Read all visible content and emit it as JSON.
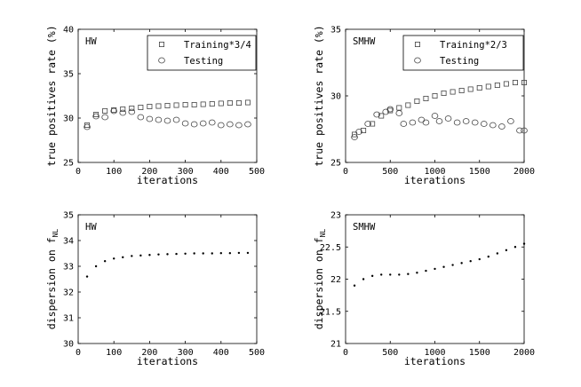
{
  "chart_data": [
    {
      "type": "scatter",
      "panel_label": "HW",
      "xlabel": "iterations",
      "ylabel": "true positives rate (%)",
      "xlim": [
        0,
        500
      ],
      "ylim": [
        25,
        40
      ],
      "xticks": [
        0,
        100,
        200,
        300,
        400,
        500
      ],
      "yticks": [
        25,
        30,
        35,
        40
      ],
      "legend": [
        "Training*3/4",
        "Testing"
      ],
      "series": [
        {
          "name": "Training*3/4",
          "marker": "square",
          "x": [
            25,
            50,
            75,
            100,
            125,
            150,
            175,
            200,
            225,
            250,
            275,
            300,
            325,
            350,
            375,
            400,
            425,
            450,
            475
          ],
          "y": [
            29.2,
            30.4,
            30.8,
            30.9,
            31.0,
            31.1,
            31.2,
            31.3,
            31.35,
            31.4,
            31.45,
            31.5,
            31.5,
            31.55,
            31.6,
            31.65,
            31.7,
            31.7,
            31.75
          ]
        },
        {
          "name": "Testing",
          "marker": "circle",
          "x": [
            25,
            50,
            75,
            100,
            125,
            150,
            175,
            200,
            225,
            250,
            275,
            300,
            325,
            350,
            375,
            400,
            425,
            450,
            475
          ],
          "y": [
            29.0,
            30.2,
            30.1,
            30.8,
            30.6,
            30.7,
            30.1,
            29.9,
            29.8,
            29.7,
            29.8,
            29.4,
            29.3,
            29.4,
            29.5,
            29.2,
            29.3,
            29.2,
            29.3
          ]
        }
      ]
    },
    {
      "type": "scatter",
      "panel_label": "SMHW",
      "xlabel": "iterations",
      "ylabel": "true positives rate (%)",
      "xlim": [
        0,
        2000
      ],
      "ylim": [
        25,
        35
      ],
      "xticks": [
        0,
        500,
        1000,
        1500,
        2000
      ],
      "yticks": [
        25,
        30,
        35
      ],
      "legend": [
        "Training*2/3",
        "Testing"
      ],
      "series": [
        {
          "name": "Training*2/3",
          "marker": "square",
          "x": [
            100,
            200,
            300,
            400,
            500,
            600,
            700,
            800,
            900,
            1000,
            1100,
            1200,
            1300,
            1400,
            1500,
            1600,
            1700,
            1800,
            1900,
            2000
          ],
          "y": [
            27.1,
            27.4,
            27.9,
            28.5,
            28.9,
            29.1,
            29.3,
            29.6,
            29.8,
            30.0,
            30.2,
            30.3,
            30.4,
            30.5,
            30.6,
            30.7,
            30.8,
            30.9,
            31.0,
            31.0
          ]
        },
        {
          "name": "Testing",
          "marker": "circle",
          "x": [
            100,
            150,
            250,
            350,
            450,
            500,
            600,
            650,
            750,
            850,
            900,
            1000,
            1050,
            1150,
            1250,
            1350,
            1450,
            1550,
            1650,
            1750,
            1850,
            1950,
            2000
          ],
          "y": [
            26.9,
            27.3,
            27.9,
            28.6,
            28.8,
            29.0,
            28.7,
            27.9,
            28.0,
            28.2,
            28.0,
            28.5,
            28.1,
            28.3,
            28.0,
            28.1,
            28.0,
            27.9,
            27.8,
            27.7,
            28.1,
            27.4,
            27.4
          ]
        }
      ]
    },
    {
      "type": "scatter",
      "panel_label": "HW",
      "xlabel": "iterations",
      "ylabel": "dispersion on f",
      "ylabel_sub": "NL",
      "xlim": [
        0,
        500
      ],
      "ylim": [
        30,
        35
      ],
      "xticks": [
        0,
        100,
        200,
        300,
        400,
        500
      ],
      "yticks": [
        30,
        31,
        32,
        33,
        34,
        35
      ],
      "series": [
        {
          "name": "dispersion",
          "marker": "dot",
          "x": [
            25,
            50,
            75,
            100,
            125,
            150,
            175,
            200,
            225,
            250,
            275,
            300,
            325,
            350,
            375,
            400,
            425,
            450,
            475
          ],
          "y": [
            32.6,
            33.0,
            33.2,
            33.3,
            33.35,
            33.4,
            33.42,
            33.44,
            33.46,
            33.47,
            33.48,
            33.49,
            33.5,
            33.5,
            33.5,
            33.51,
            33.51,
            33.52,
            33.52
          ]
        }
      ]
    },
    {
      "type": "scatter",
      "panel_label": "SMHW",
      "xlabel": "iterations",
      "ylabel": "dispersion on f",
      "ylabel_sub": "NL",
      "xlim": [
        0,
        2000
      ],
      "ylim": [
        21,
        23
      ],
      "xticks": [
        0,
        500,
        1000,
        1500,
        2000
      ],
      "yticks": [
        21,
        21.5,
        22,
        22.5,
        23
      ],
      "series": [
        {
          "name": "dispersion",
          "marker": "dot",
          "x": [
            100,
            200,
            300,
            400,
            500,
            600,
            700,
            800,
            900,
            1000,
            1100,
            1200,
            1300,
            1400,
            1500,
            1600,
            1700,
            1800,
            1900,
            2000
          ],
          "y": [
            21.9,
            22.0,
            22.05,
            22.07,
            22.07,
            22.07,
            22.08,
            22.1,
            22.13,
            22.16,
            22.19,
            22.22,
            22.25,
            22.28,
            22.31,
            22.35,
            22.4,
            22.45,
            22.5,
            22.55
          ]
        }
      ]
    }
  ]
}
